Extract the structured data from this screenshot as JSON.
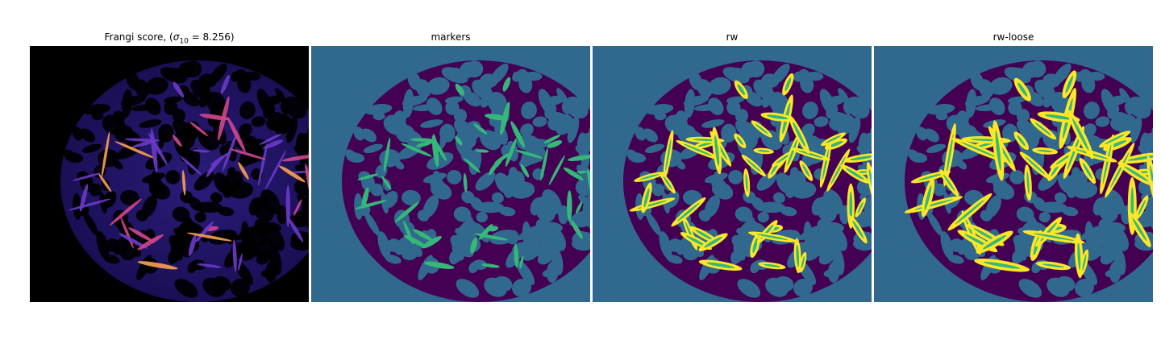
{
  "panels": [
    {
      "title_prefix": "Frangi score, (",
      "title_symbol": "σ",
      "title_sub": "10",
      "title_suffix": " = 8.256)",
      "kind": "frangi"
    },
    {
      "title": "markers",
      "kind": "markers"
    },
    {
      "title": "rw",
      "kind": "rw"
    },
    {
      "title": "rw-loose",
      "kind": "rw-loose"
    }
  ],
  "colors": {
    "black": "#000000",
    "teal_background": "#31688e",
    "purple": "#440154",
    "green": "#35b779",
    "yellow": "#fde725",
    "frangi_blue": "#3a2a9a",
    "frangi_bright": "#d2468c",
    "frangi_hot": "#fca050"
  }
}
